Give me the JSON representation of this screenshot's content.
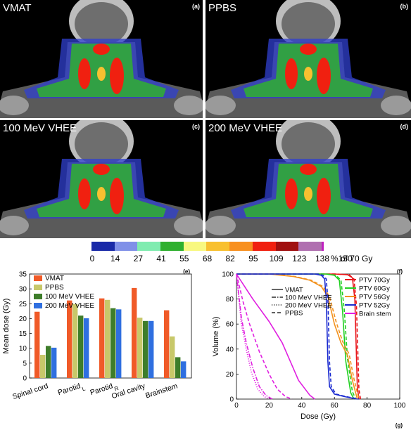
{
  "panels": [
    {
      "label": "VMAT",
      "letter": "(a)"
    },
    {
      "label": "PPBS",
      "letter": "(b)"
    },
    {
      "label": "100 MeV VHEE",
      "letter": "(c)"
    },
    {
      "label": "200 MeV VHEE",
      "letter": "(d)"
    }
  ],
  "colorbar": {
    "ticks": [
      "0",
      "14",
      "27",
      "41",
      "55",
      "68",
      "82",
      "95",
      "109",
      "123",
      "138",
      "150"
    ],
    "unit": "% of 70 Gy",
    "colors": [
      "#1a2aa8",
      "#8090e8",
      "#80ecb0",
      "#30b030",
      "#f8f880",
      "#f8c030",
      "#f89020",
      "#f02010",
      "#a01010",
      "#b070b0",
      "#c020c0"
    ]
  },
  "chart_data": [
    {
      "type": "bar",
      "letter": "(e)",
      "ylabel": "Mean dose (Gy)",
      "ylim": [
        0,
        35
      ],
      "yticks": [
        "0",
        "5",
        "10",
        "15",
        "20",
        "25",
        "30",
        "35"
      ],
      "categories": [
        "Spinal cord",
        "Parotid",
        "Parotid",
        "Oral cavity",
        "Brainstem"
      ],
      "category_subscripts": [
        "",
        "L",
        "R",
        "",
        ""
      ],
      "series": [
        {
          "name": "VMAT",
          "color": "#f05a28",
          "values": [
            22.3,
            26.1,
            26.8,
            30.3,
            22.8
          ]
        },
        {
          "name": "PPBS",
          "color": "#c8c86a",
          "values": [
            7.8,
            24.9,
            26.3,
            20.3,
            14.0
          ]
        },
        {
          "name": "100 MeV VHEE",
          "color": "#3e7d2a",
          "values": [
            10.8,
            21.0,
            23.5,
            19.2,
            7.0
          ]
        },
        {
          "name": "200 MeV VHEE",
          "color": "#2f6fe0",
          "values": [
            10.2,
            20.1,
            23.1,
            19.2,
            5.6
          ]
        }
      ],
      "legend_position": "top-left"
    },
    {
      "type": "line",
      "letter": "(f)",
      "footer_letter": "(g)",
      "xlabel": "Dose (Gy)",
      "ylabel": "Volume (%)",
      "xlim": [
        0,
        100
      ],
      "ylim": [
        0,
        100
      ],
      "xticks": [
        "0",
        "20",
        "40",
        "60",
        "80",
        "100"
      ],
      "yticks": [
        "0",
        "20",
        "40",
        "60",
        "80",
        "100"
      ],
      "style_legend": [
        {
          "name": "VMAT",
          "dash": "solid"
        },
        {
          "name": "100 MeV VHEE",
          "dash": "dashdot"
        },
        {
          "name": "200 MeV VHEE",
          "dash": "dotted"
        },
        {
          "name": "PPBS",
          "dash": "dashed"
        }
      ],
      "structure_legend": [
        {
          "name": "PTV 70Gy",
          "color": "#e8161b"
        },
        {
          "name": "PTV 60Gy",
          "color": "#22d022"
        },
        {
          "name": "PTV 56Gy",
          "color": "#f2921e"
        },
        {
          "name": "PTV 52Gy",
          "color": "#1a2ad0"
        },
        {
          "name": "Brain stem",
          "color": "#e020e0"
        }
      ],
      "curves": [
        {
          "structure": "PTV 70Gy",
          "style": "VMAT",
          "x": [
            0,
            60,
            68,
            71,
            72.5,
            74,
            75
          ],
          "y": [
            100,
            100,
            99.5,
            97,
            80,
            10,
            0
          ]
        },
        {
          "structure": "PTV 70Gy",
          "style": "PPBS",
          "x": [
            0,
            60,
            69,
            72,
            73.5,
            75,
            76
          ],
          "y": [
            100,
            100,
            99.5,
            96,
            75,
            8,
            0
          ]
        },
        {
          "structure": "PTV 60Gy",
          "style": "VMAT",
          "x": [
            0,
            55,
            60,
            63,
            65,
            67,
            70,
            72
          ],
          "y": [
            100,
            100,
            99,
            95,
            70,
            30,
            5,
            0
          ]
        },
        {
          "structure": "PTV 60Gy",
          "style": "PPBS",
          "x": [
            0,
            55,
            61,
            64,
            66,
            68,
            71,
            73
          ],
          "y": [
            100,
            100,
            99,
            95,
            72,
            32,
            6,
            0
          ]
        },
        {
          "structure": "PTV 56Gy",
          "style": "VMAT",
          "x": [
            0,
            20,
            35,
            45,
            52,
            56,
            60,
            64,
            68,
            71,
            74
          ],
          "y": [
            100,
            100,
            98,
            95,
            90,
            82,
            60,
            45,
            35,
            15,
            0
          ]
        },
        {
          "structure": "PTV 56Gy",
          "style": "PPBS",
          "x": [
            0,
            22,
            36,
            46,
            53,
            57,
            61,
            65,
            69,
            72,
            75
          ],
          "y": [
            100,
            100,
            98,
            95,
            90,
            82,
            62,
            46,
            36,
            16,
            0
          ]
        },
        {
          "structure": "PTV 52Gy",
          "style": "VMAT",
          "x": [
            0,
            48,
            52,
            54,
            55,
            56,
            57,
            60,
            66,
            72,
            74
          ],
          "y": [
            100,
            100,
            99,
            96,
            80,
            30,
            10,
            4,
            2,
            0.5,
            0
          ]
        },
        {
          "structure": "PTV 52Gy",
          "style": "PPBS",
          "x": [
            0,
            50,
            53,
            55,
            56,
            57,
            58,
            61,
            67,
            73,
            75
          ],
          "y": [
            100,
            100,
            99,
            96,
            80,
            30,
            10,
            4,
            2,
            0.5,
            0
          ]
        },
        {
          "structure": "Brain stem",
          "style": "VMAT",
          "x": [
            0,
            5,
            10,
            20,
            28,
            33,
            38,
            45,
            48
          ],
          "y": [
            100,
            90,
            80,
            62,
            45,
            30,
            15,
            3,
            0
          ]
        },
        {
          "structure": "Brain stem",
          "style": "PPBS",
          "x": [
            0,
            4,
            8,
            14,
            20,
            25,
            30,
            34
          ],
          "y": [
            100,
            78,
            60,
            38,
            20,
            8,
            2,
            0
          ]
        },
        {
          "structure": "Brain stem",
          "style": "100 MeV VHEE",
          "x": [
            0,
            3,
            6,
            10,
            14,
            18,
            22
          ],
          "y": [
            100,
            65,
            45,
            25,
            10,
            3,
            0
          ]
        },
        {
          "structure": "Brain stem",
          "style": "200 MeV VHEE",
          "x": [
            0,
            3,
            6,
            9,
            13,
            17,
            20
          ],
          "y": [
            100,
            60,
            40,
            22,
            8,
            2,
            0
          ]
        }
      ]
    }
  ]
}
